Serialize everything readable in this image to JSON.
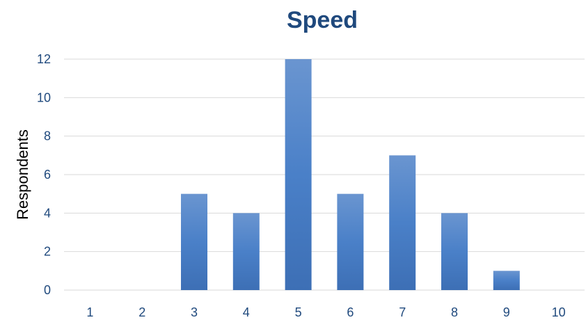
{
  "chart_data": {
    "type": "bar",
    "title": "Speed",
    "xlabel": "",
    "ylabel": "Respondents",
    "categories": [
      "1",
      "2",
      "3",
      "4",
      "5",
      "6",
      "7",
      "8",
      "9",
      "10"
    ],
    "values": [
      0,
      0,
      5,
      4,
      12,
      5,
      7,
      4,
      1,
      0
    ],
    "ylim": [
      0,
      12
    ],
    "yticks": [
      0,
      2,
      4,
      6,
      8,
      10,
      12
    ],
    "grid": true,
    "legend": "none"
  },
  "colors": {
    "title": "#1f497d",
    "ticks": "#1f497d",
    "ylabel": "#000000",
    "gridline": "#d9d9d9",
    "bar_top": "#6a95d0",
    "bar_mid": "#4a80c8",
    "bar_bottom": "#3d6fb5"
  }
}
